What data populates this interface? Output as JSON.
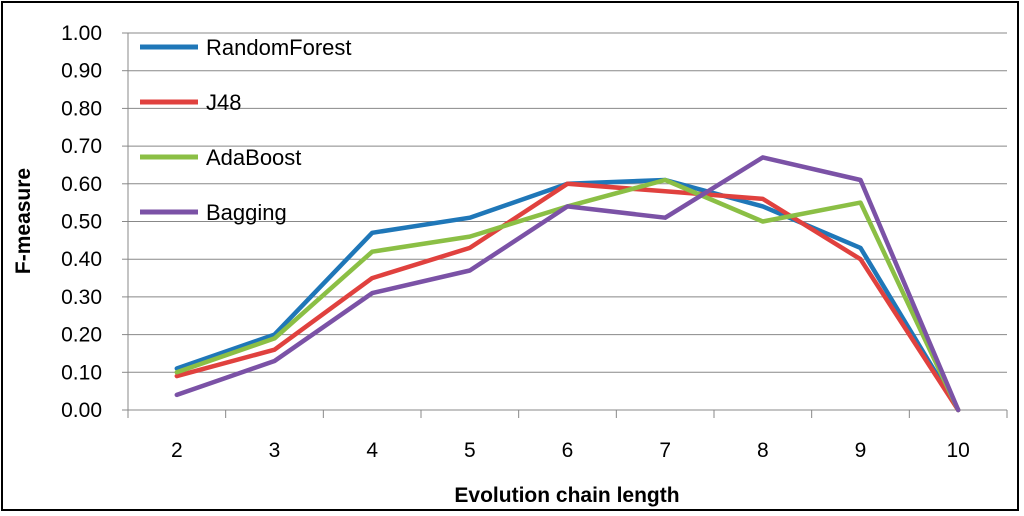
{
  "chart_data": {
    "type": "line",
    "title": "",
    "xlabel": "Evolution chain length",
    "ylabel": "F-measure",
    "categories": [
      "2",
      "3",
      "4",
      "5",
      "6",
      "7",
      "8",
      "9",
      "10"
    ],
    "yticks": [
      "0.00",
      "0.10",
      "0.20",
      "0.30",
      "0.40",
      "0.50",
      "0.60",
      "0.70",
      "0.80",
      "0.90",
      "1.00"
    ],
    "ylim": [
      0,
      1
    ],
    "grid": true,
    "legend_position": "top-left",
    "series": [
      {
        "name": "RandomForest",
        "color": "#1f77b8",
        "values": [
          0.11,
          0.2,
          0.47,
          0.51,
          0.6,
          0.61,
          0.54,
          0.43,
          0.0
        ]
      },
      {
        "name": "J48",
        "color": "#e0413e",
        "values": [
          0.09,
          0.16,
          0.35,
          0.43,
          0.6,
          0.58,
          0.56,
          0.4,
          0.0
        ]
      },
      {
        "name": "AdaBoost",
        "color": "#8bbf45",
        "values": [
          0.1,
          0.19,
          0.42,
          0.46,
          0.54,
          0.61,
          0.5,
          0.55,
          0.0
        ]
      },
      {
        "name": "Bagging",
        "color": "#7b52a6",
        "values": [
          0.04,
          0.13,
          0.31,
          0.37,
          0.54,
          0.51,
          0.67,
          0.61,
          0.0
        ]
      }
    ]
  }
}
